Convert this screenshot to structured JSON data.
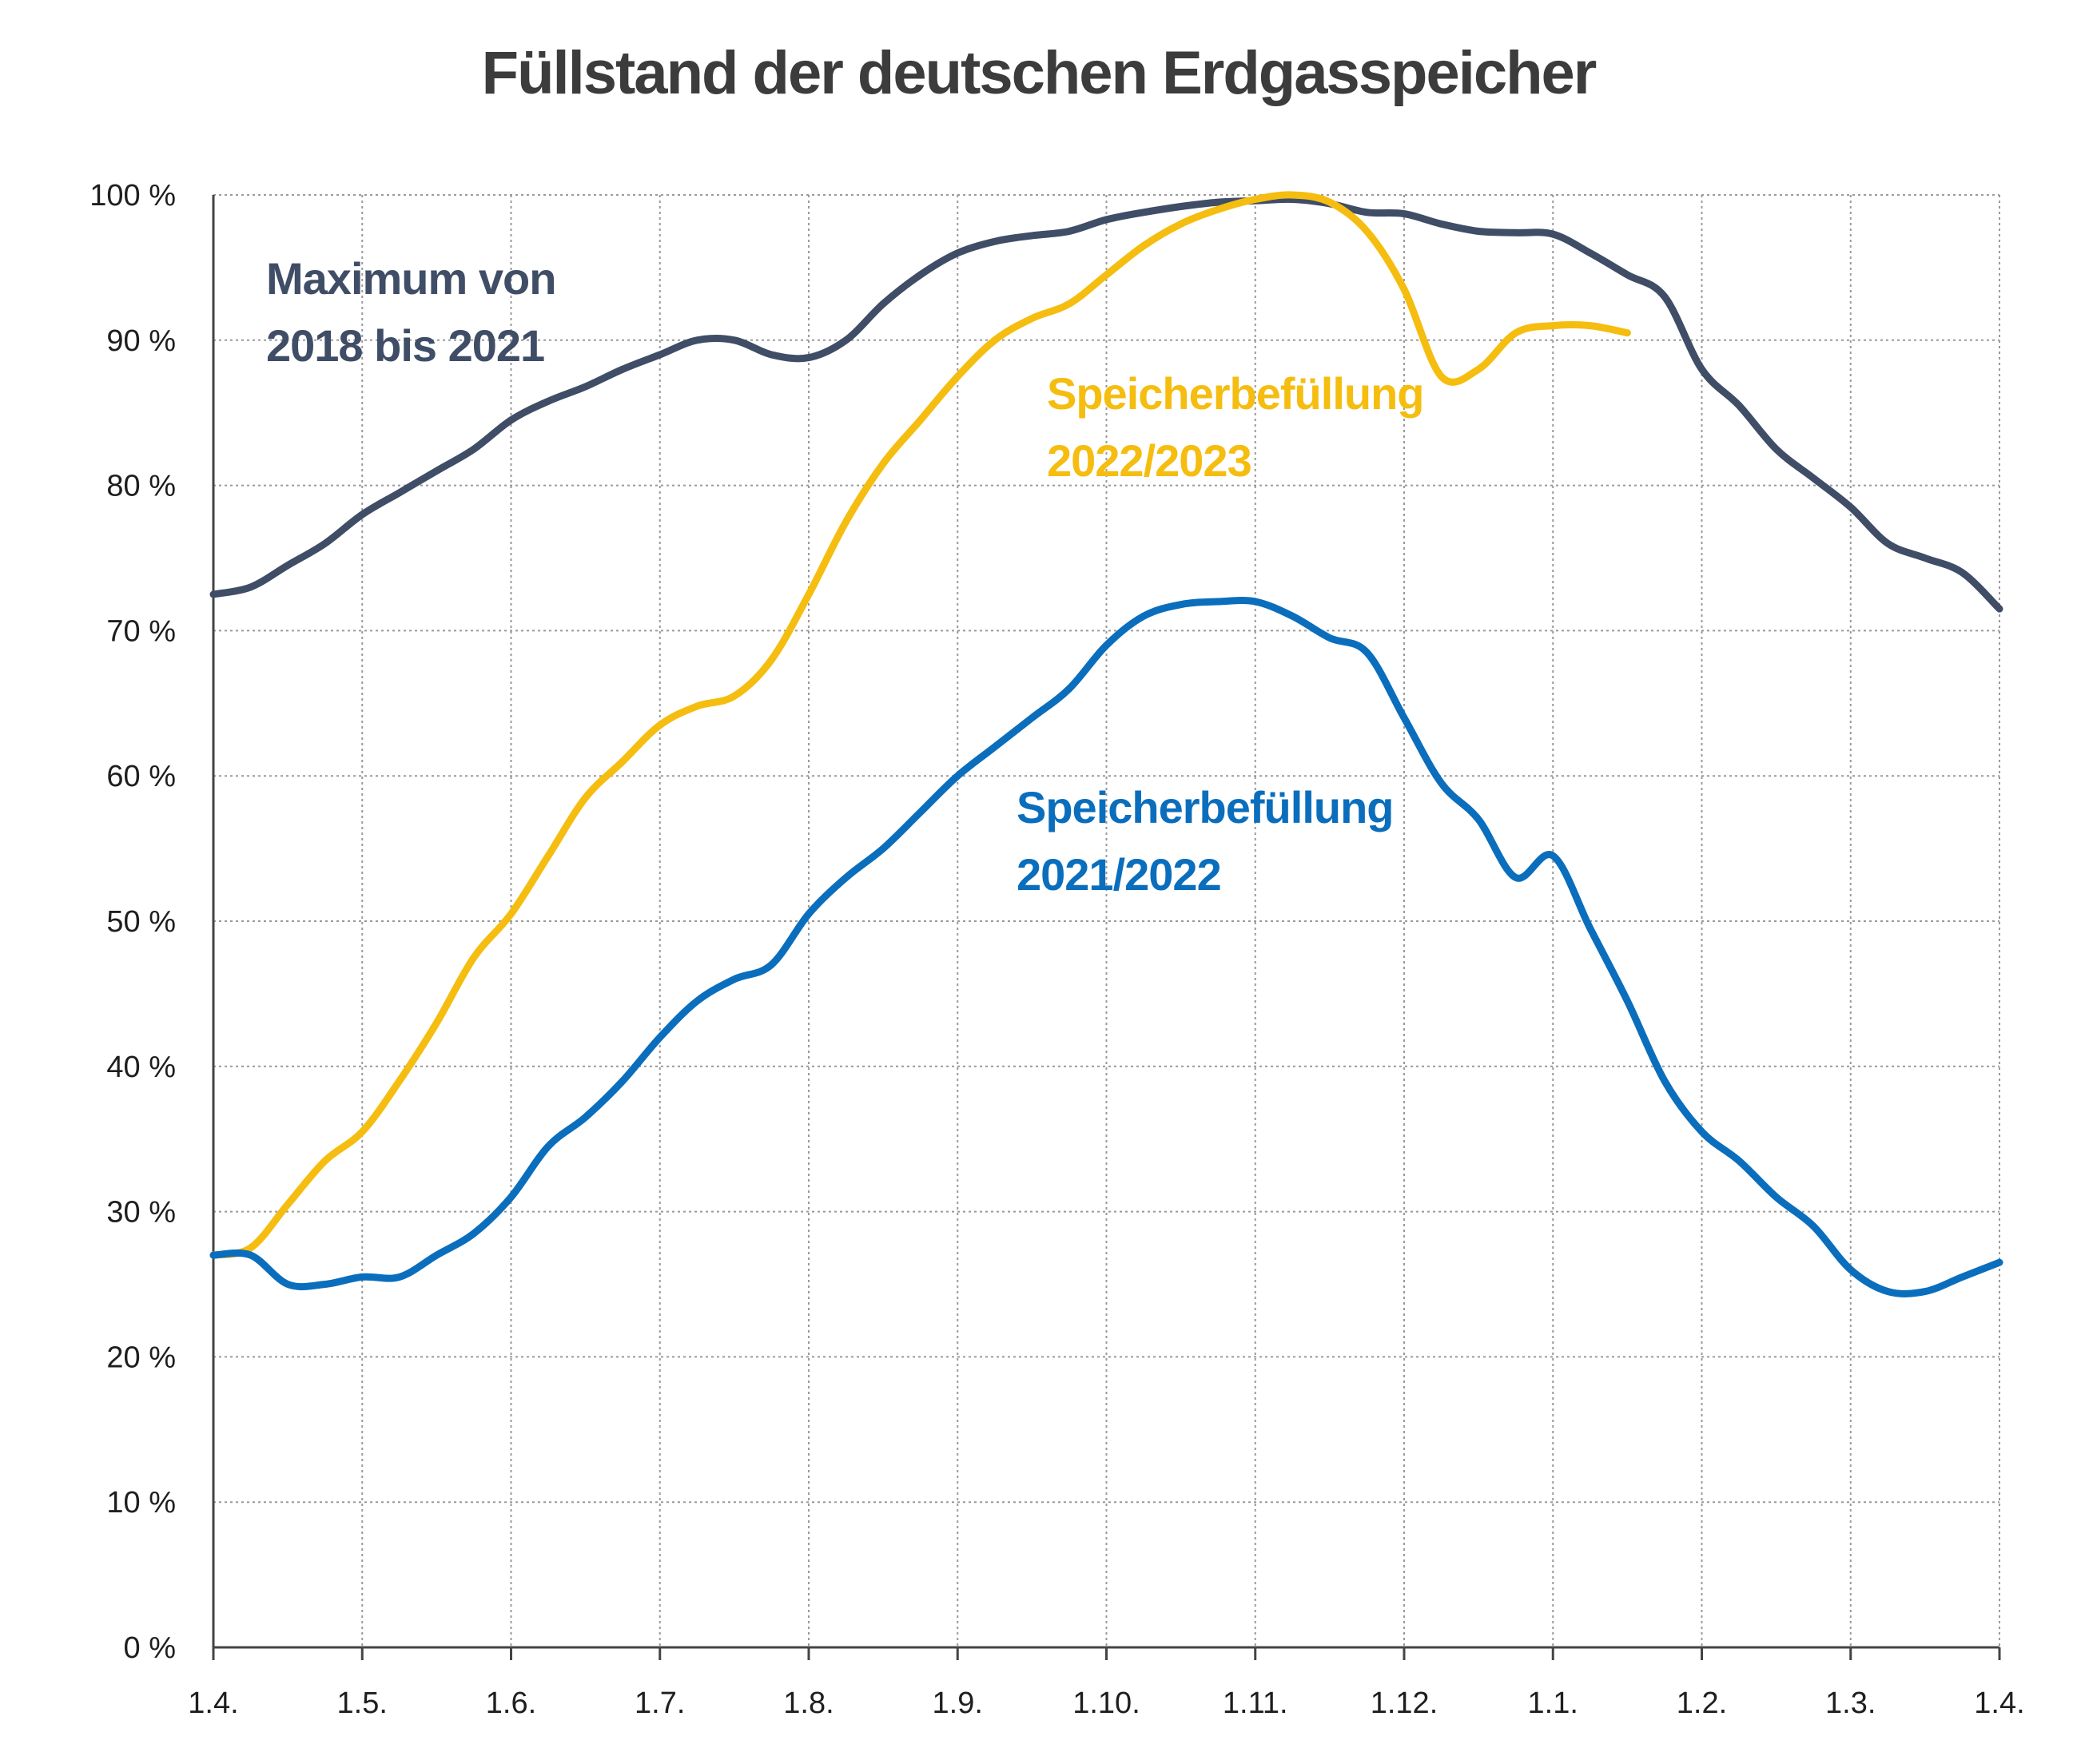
{
  "chart_data": {
    "type": "line",
    "title": "Füllstand der deutschen Erdgasspeicher",
    "xlabel": "",
    "ylabel": "",
    "ylim": [
      0,
      100
    ],
    "grid": true,
    "y_ticks": [
      "0 %",
      "10 %",
      "20 %",
      "30 %",
      "40 %",
      "50 %",
      "60 %",
      "70 %",
      "80 %",
      "90 %",
      "100 %"
    ],
    "x_ticks": [
      "1.4.",
      "1.5.",
      "1.6.",
      "1.7.",
      "1.8.",
      "1.9.",
      "1.10.",
      "1.11.",
      "1.12.",
      "1.1.",
      "1.2.",
      "1.3.",
      "1.4."
    ],
    "series": [
      {
        "name": "Maximum von 2018 bis 2021",
        "label_lines": [
          "Maximum von",
          "2018 bis 2021"
        ],
        "color": "#3f4d66",
        "x": [
          0,
          0.25,
          0.5,
          0.75,
          1,
          1.25,
          1.5,
          1.75,
          2,
          2.25,
          2.5,
          2.75,
          3,
          3.25,
          3.5,
          3.75,
          4,
          4.25,
          4.5,
          4.75,
          5,
          5.25,
          5.5,
          5.75,
          6,
          6.25,
          6.5,
          6.75,
          7,
          7.25,
          7.5,
          7.75,
          8,
          8.25,
          8.5,
          8.75,
          9,
          9.25,
          9.5,
          9.75,
          10,
          10.25,
          10.5,
          10.75,
          11,
          11.25,
          11.5,
          11.75,
          12
        ],
        "y": [
          72.5,
          73.0,
          74.5,
          76.0,
          78.0,
          79.5,
          81.0,
          82.5,
          84.5,
          85.8,
          86.8,
          88.0,
          89.0,
          90.0,
          90.0,
          89.0,
          88.8,
          90.0,
          92.5,
          94.5,
          96.0,
          96.8,
          97.2,
          97.5,
          98.3,
          98.8,
          99.2,
          99.5,
          99.6,
          99.7,
          99.4,
          98.8,
          98.7,
          98.0,
          97.5,
          97.4,
          97.3,
          96.0,
          94.5,
          93.0,
          88.0,
          85.5,
          82.5,
          80.5,
          78.5,
          76.0,
          75.0,
          74.0,
          71.5
        ]
      },
      {
        "name": "Speicherbefüllung 2022/2023",
        "label_lines": [
          "Speicherbefüllung",
          "2022/2023"
        ],
        "color": "#f5bd0f",
        "x": [
          0,
          0.25,
          0.5,
          0.75,
          1,
          1.25,
          1.5,
          1.75,
          2,
          2.25,
          2.5,
          2.75,
          3,
          3.25,
          3.5,
          3.75,
          4,
          4.25,
          4.5,
          4.75,
          5,
          5.25,
          5.5,
          5.75,
          6,
          6.25,
          6.5,
          6.75,
          7,
          7.25,
          7.5,
          7.75,
          8,
          8.25,
          8.5,
          8.75,
          9,
          9.25,
          9.5
        ],
        "y": [
          27.0,
          27.5,
          30.5,
          33.5,
          35.5,
          39.0,
          43.0,
          47.5,
          50.5,
          54.5,
          58.5,
          61.0,
          63.5,
          64.8,
          65.5,
          68.0,
          72.5,
          77.5,
          81.5,
          84.5,
          87.5,
          90.0,
          91.5,
          92.5,
          94.5,
          96.5,
          98.0,
          99.0,
          99.7,
          100.0,
          99.5,
          97.5,
          93.5,
          87.5,
          88.0,
          90.5,
          91.0,
          91.0,
          90.5
        ]
      },
      {
        "name": "Speicherbefüllung 2021/2022",
        "label_lines": [
          "Speicherbefüllung",
          "2021/2022"
        ],
        "color": "#0a6ebd",
        "x": [
          0,
          0.25,
          0.5,
          0.75,
          1,
          1.25,
          1.5,
          1.75,
          2,
          2.25,
          2.5,
          2.75,
          3,
          3.25,
          3.5,
          3.75,
          4,
          4.25,
          4.5,
          4.75,
          5,
          5.25,
          5.5,
          5.75,
          6,
          6.25,
          6.5,
          6.75,
          7,
          7.25,
          7.5,
          7.75,
          8,
          8.25,
          8.5,
          8.75,
          9,
          9.25,
          9.5,
          9.75,
          10,
          10.25,
          10.5,
          10.75,
          11,
          11.25,
          11.5,
          11.75,
          12
        ],
        "y": [
          27.0,
          27.0,
          25.0,
          25.0,
          25.5,
          25.5,
          27.0,
          28.5,
          31.0,
          34.5,
          36.5,
          39.0,
          42.0,
          44.5,
          46.0,
          47.0,
          50.5,
          53.0,
          55.0,
          57.5,
          60.0,
          62.0,
          64.0,
          66.0,
          69.0,
          71.0,
          71.8,
          72.0,
          72.0,
          71.0,
          69.5,
          68.5,
          64.0,
          59.5,
          57.0,
          53.0,
          54.5,
          49.5,
          44.5,
          39.0,
          35.5,
          33.5,
          31.0,
          29.0,
          26.0,
          24.5,
          24.5,
          25.5,
          26.5
        ]
      }
    ]
  }
}
